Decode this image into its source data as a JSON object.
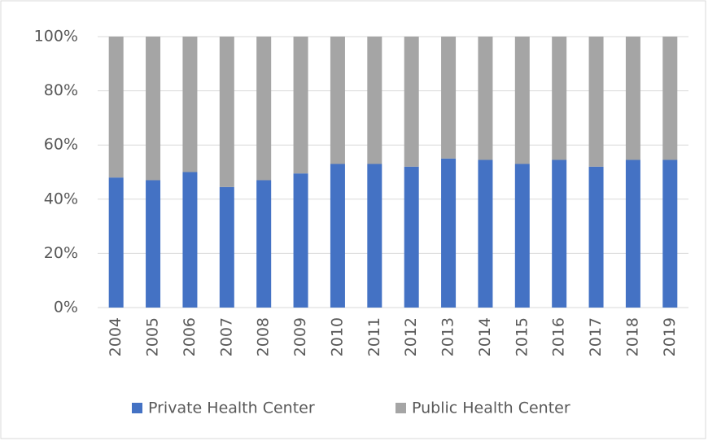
{
  "chart_data": {
    "type": "stacked_bar",
    "categories": [
      "2004",
      "2005",
      "2006",
      "2007",
      "2008",
      "2009",
      "2010",
      "2011",
      "2012",
      "2013",
      "2014",
      "2015",
      "2016",
      "2017",
      "2018",
      "2019"
    ],
    "series": [
      {
        "name": "Private Health Center",
        "color": "#4472c4",
        "values": [
          48,
          47,
          50,
          44.5,
          47,
          49.5,
          53,
          53,
          52,
          55,
          54.5,
          53,
          54.5,
          52,
          54.5,
          54.5
        ]
      },
      {
        "name": "Public Health Center",
        "color": "#a5a5a5",
        "values": [
          52,
          53,
          50,
          55.5,
          53,
          50.5,
          47,
          47,
          48,
          45,
          45.5,
          47,
          45.5,
          48,
          45.5,
          45.5
        ]
      }
    ],
    "ylim": [
      0,
      100
    ],
    "yticks": [
      {
        "value": 0,
        "label": "0%"
      },
      {
        "value": 20,
        "label": "20%"
      },
      {
        "value": 40,
        "label": "40%"
      },
      {
        "value": 60,
        "label": "60%"
      },
      {
        "value": 80,
        "label": "80%"
      },
      {
        "value": 100,
        "label": "100%"
      }
    ],
    "grid": true,
    "legend": "bottom"
  }
}
